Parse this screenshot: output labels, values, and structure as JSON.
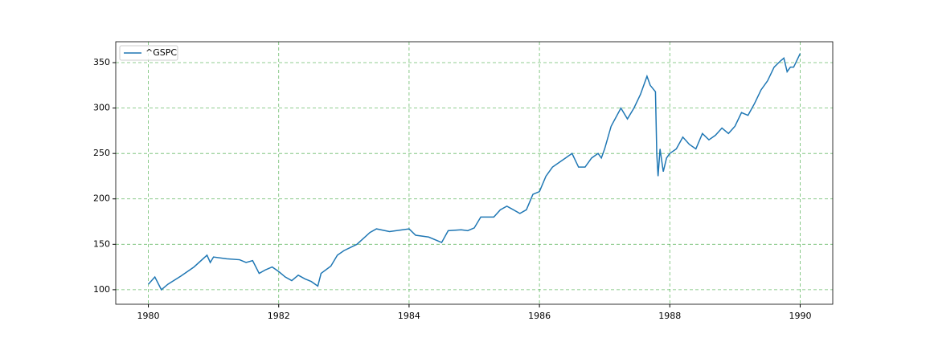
{
  "chart_data": {
    "type": "line",
    "x": [
      1980.0,
      1980.1,
      1980.2,
      1980.3,
      1980.5,
      1980.7,
      1980.9,
      1980.95,
      1981.0,
      1981.2,
      1981.4,
      1981.5,
      1981.6,
      1981.7,
      1981.8,
      1981.9,
      1982.0,
      1982.1,
      1982.2,
      1982.3,
      1982.4,
      1982.5,
      1982.6,
      1982.65,
      1982.8,
      1982.9,
      1983.0,
      1983.2,
      1983.4,
      1983.5,
      1983.7,
      1983.9,
      1984.0,
      1984.1,
      1984.3,
      1984.5,
      1984.6,
      1984.8,
      1984.9,
      1985.0,
      1985.1,
      1985.3,
      1985.4,
      1985.5,
      1985.7,
      1985.8,
      1985.9,
      1986.0,
      1986.1,
      1986.2,
      1986.3,
      1986.4,
      1986.5,
      1986.6,
      1986.7,
      1986.8,
      1986.9,
      1986.95,
      1987.0,
      1987.1,
      1987.25,
      1987.35,
      1987.45,
      1987.55,
      1987.65,
      1987.7,
      1987.78,
      1987.8,
      1987.82,
      1987.85,
      1987.9,
      1987.95,
      1988.0,
      1988.1,
      1988.2,
      1988.3,
      1988.4,
      1988.5,
      1988.6,
      1988.7,
      1988.8,
      1988.9,
      1989.0,
      1989.1,
      1989.2,
      1989.3,
      1989.4,
      1989.5,
      1989.6,
      1989.7,
      1989.75,
      1989.8,
      1989.85,
      1989.9,
      1990.0
    ],
    "series": [
      {
        "name": "^GSPC",
        "color": "#1f77b4",
        "values": [
          106,
          114,
          100,
          106,
          115,
          125,
          138,
          130,
          136,
          134,
          133,
          130,
          132,
          118,
          122,
          125,
          120,
          114,
          110,
          116,
          112,
          109,
          104,
          118,
          126,
          138,
          143,
          150,
          163,
          167,
          164,
          166,
          167,
          160,
          158,
          152,
          165,
          166,
          165,
          168,
          180,
          180,
          188,
          192,
          184,
          188,
          205,
          208,
          225,
          235,
          240,
          245,
          250,
          235,
          235,
          245,
          250,
          245,
          255,
          280,
          300,
          288,
          300,
          315,
          335,
          325,
          318,
          250,
          225,
          255,
          230,
          245,
          250,
          255,
          268,
          260,
          255,
          272,
          265,
          270,
          278,
          272,
          280,
          295,
          292,
          305,
          320,
          330,
          345,
          352,
          355,
          340,
          345,
          345,
          360
        ]
      }
    ],
    "xlim": [
      1979.5,
      1990.5
    ],
    "xticks": [
      1980,
      1982,
      1984,
      1986,
      1988,
      1990
    ],
    "ylim": [
      84,
      373
    ],
    "yticks": [
      100,
      150,
      200,
      250,
      300,
      350
    ],
    "grid": true,
    "grid_color": "#2ca02c",
    "legend": "upper-left"
  }
}
